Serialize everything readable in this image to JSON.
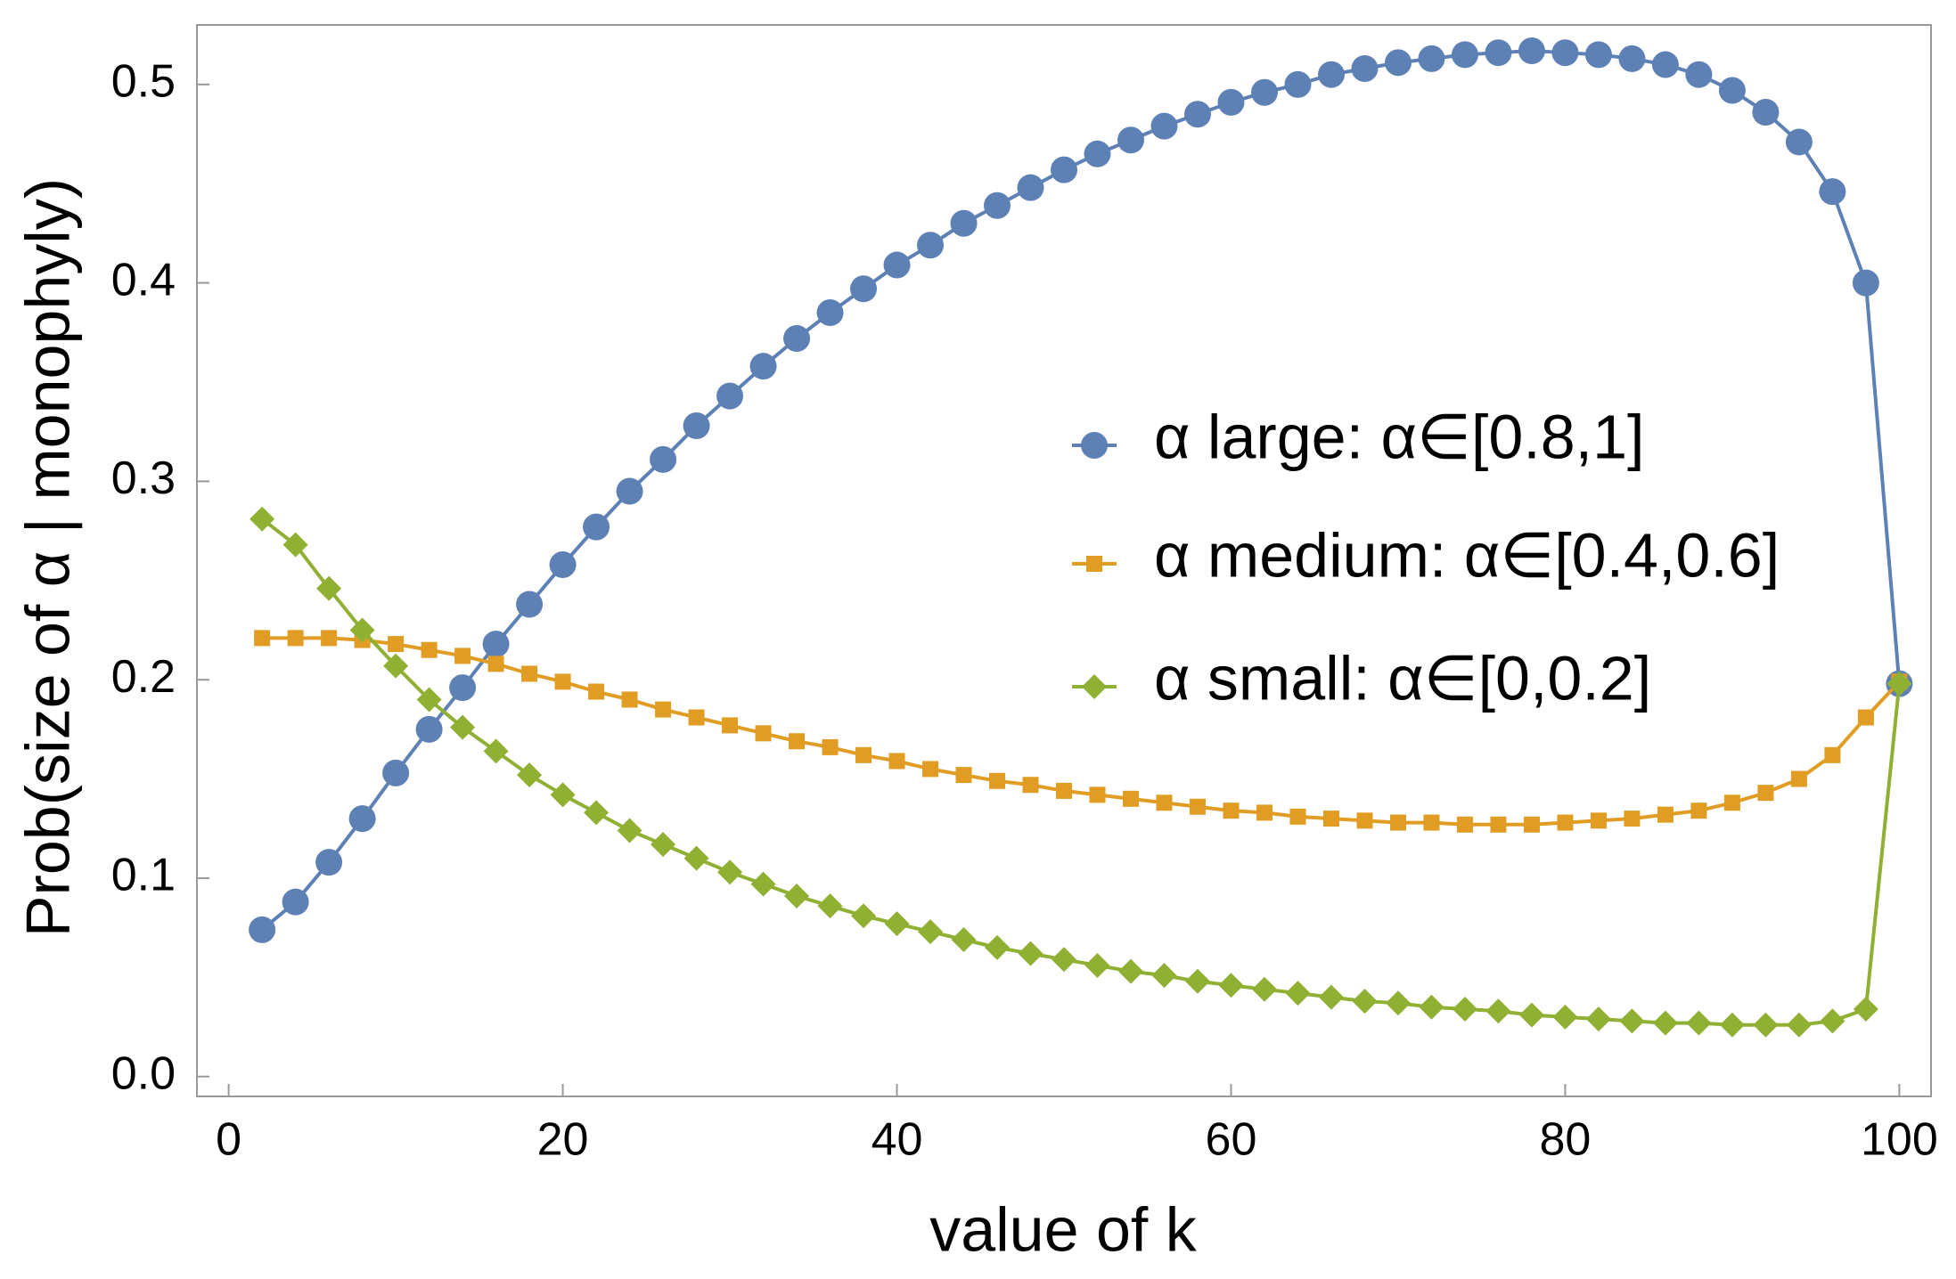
{
  "chart_data": {
    "type": "line",
    "xlabel": "value of k",
    "ylabel": "Prob(size of α | monophyly)",
    "x": [
      2,
      4,
      6,
      8,
      10,
      12,
      14,
      16,
      18,
      20,
      22,
      24,
      26,
      28,
      30,
      32,
      34,
      36,
      38,
      40,
      42,
      44,
      46,
      48,
      50,
      52,
      54,
      56,
      58,
      60,
      62,
      64,
      66,
      68,
      70,
      72,
      74,
      76,
      78,
      80,
      82,
      84,
      86,
      88,
      90,
      92,
      94,
      96,
      98,
      100
    ],
    "series": [
      {
        "name": "α large: α∈[0.8,1]",
        "color": "#5e81b5",
        "marker": "circle",
        "values": [
          0.074,
          0.088,
          0.108,
          0.13,
          0.153,
          0.175,
          0.196,
          0.218,
          0.238,
          0.258,
          0.277,
          0.295,
          0.311,
          0.328,
          0.343,
          0.358,
          0.372,
          0.385,
          0.397,
          0.409,
          0.419,
          0.43,
          0.439,
          0.448,
          0.457,
          0.465,
          0.472,
          0.479,
          0.485,
          0.491,
          0.496,
          0.5,
          0.505,
          0.508,
          0.511,
          0.513,
          0.515,
          0.516,
          0.517,
          0.516,
          0.515,
          0.513,
          0.51,
          0.505,
          0.497,
          0.486,
          0.471,
          0.446,
          0.4,
          0.198
        ]
      },
      {
        "name": "α medium: α∈[0.4,0.6]",
        "color": "#e19c24",
        "marker": "square",
        "values": [
          0.221,
          0.221,
          0.221,
          0.22,
          0.218,
          0.215,
          0.212,
          0.208,
          0.203,
          0.199,
          0.194,
          0.19,
          0.185,
          0.181,
          0.177,
          0.173,
          0.169,
          0.166,
          0.162,
          0.159,
          0.155,
          0.152,
          0.149,
          0.147,
          0.144,
          0.142,
          0.14,
          0.138,
          0.136,
          0.134,
          0.133,
          0.131,
          0.13,
          0.129,
          0.128,
          0.128,
          0.127,
          0.127,
          0.127,
          0.128,
          0.129,
          0.13,
          0.132,
          0.134,
          0.138,
          0.143,
          0.15,
          0.162,
          0.181,
          0.199
        ]
      },
      {
        "name": "α small: α∈[0,0.2]",
        "color": "#8fb032",
        "marker": "diamond",
        "values": [
          0.281,
          0.268,
          0.246,
          0.225,
          0.207,
          0.19,
          0.176,
          0.164,
          0.152,
          0.142,
          0.133,
          0.124,
          0.117,
          0.11,
          0.103,
          0.097,
          0.091,
          0.086,
          0.081,
          0.077,
          0.073,
          0.069,
          0.065,
          0.062,
          0.059,
          0.056,
          0.053,
          0.051,
          0.048,
          0.046,
          0.044,
          0.042,
          0.04,
          0.038,
          0.037,
          0.035,
          0.034,
          0.033,
          0.031,
          0.03,
          0.029,
          0.028,
          0.027,
          0.027,
          0.026,
          0.026,
          0.026,
          0.028,
          0.034,
          0.198
        ]
      }
    ],
    "xlim": [
      -1.9,
      101.9
    ],
    "ylim": [
      -0.01,
      0.53
    ],
    "xticks": [
      0,
      20,
      40,
      60,
      80,
      100
    ],
    "yticks": [
      {
        "value": 0,
        "label": "0.0"
      },
      0.1,
      0.2,
      0.3,
      0.4,
      0.5
    ]
  }
}
